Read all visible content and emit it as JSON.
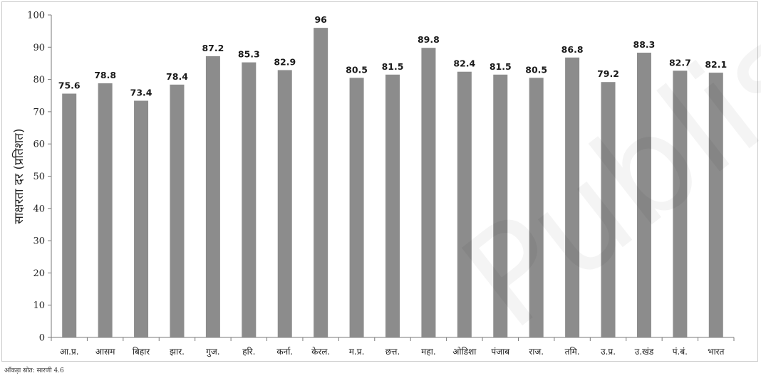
{
  "chart_data": {
    "type": "bar",
    "categories": [
      "आ.प्र.",
      "आसम",
      "बिहार",
      "झार.",
      "गुज.",
      "हरि.",
      "कर्ना.",
      "केरल.",
      "म.प्र.",
      "छत्त.",
      "महा.",
      "ओडिशा",
      "पंजाब",
      "राज.",
      "तमि.",
      "उ.प्र.",
      "उ.खंड",
      "पं.बं.",
      "भारत"
    ],
    "values": [
      75.6,
      78.8,
      73.4,
      78.4,
      87.2,
      85.3,
      82.9,
      96,
      80.5,
      81.5,
      89.8,
      82.4,
      81.5,
      80.5,
      86.8,
      79.2,
      88.3,
      82.7,
      82.1
    ],
    "value_labels": [
      "75.6",
      "78.8",
      "73.4",
      "78.4",
      "87.2",
      "85.3",
      "82.9",
      "96",
      "80.5",
      "81.5",
      "89.8",
      "82.4",
      "81.5",
      "80.5",
      "86.8",
      "79.2",
      "88.3",
      "82.7",
      "82.1"
    ],
    "title": "",
    "xlabel": "",
    "ylabel": "साक्षरता दर (प्रतिशत)",
    "ylim": [
      0,
      100
    ],
    "yticks": [
      0,
      10,
      20,
      30,
      40,
      50,
      60,
      70,
      80,
      90,
      100
    ],
    "grid": false,
    "legend": "none",
    "bar_color": "#8c8c8c"
  },
  "source_note": "आँकड़ा स्रोत: सारणी 4.6",
  "watermark": "Published"
}
